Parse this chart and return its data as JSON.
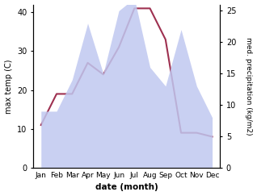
{
  "months": [
    "Jan",
    "Feb",
    "Mar",
    "Apr",
    "May",
    "Jun",
    "Jul",
    "Aug",
    "Sep",
    "Oct",
    "Nov",
    "Dec"
  ],
  "x": [
    1,
    2,
    3,
    4,
    5,
    6,
    7,
    8,
    9,
    10,
    11,
    12
  ],
  "temperature": [
    11,
    19,
    19,
    27,
    24,
    31,
    41,
    41,
    33,
    9,
    9,
    8
  ],
  "precipitation": [
    9,
    9,
    14,
    23,
    15,
    25,
    27,
    16,
    13,
    22,
    13,
    8
  ],
  "temp_color": "#9e3050",
  "precip_fill_color": "#c0c8f0",
  "temp_ylim": [
    0,
    42
  ],
  "precip_ylim": [
    0,
    26
  ],
  "temp_yticks": [
    0,
    10,
    20,
    30,
    40
  ],
  "precip_yticks": [
    0,
    5,
    10,
    15,
    20,
    25
  ],
  "ylabel_left": "max temp (C)",
  "ylabel_right": "med. precipitation (kg/m2)",
  "xlabel": "date (month)",
  "background_color": "#ffffff"
}
